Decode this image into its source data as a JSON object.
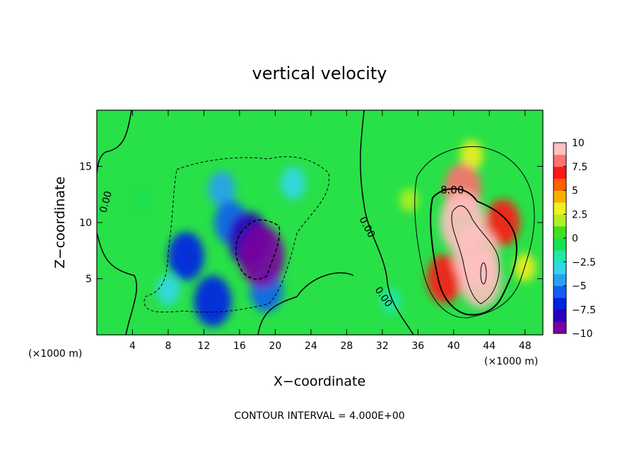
{
  "chart_data": {
    "type": "heatmap",
    "title": "vertical velocity",
    "xlabel": "X−coordinate",
    "ylabel": "Z−coordinate",
    "x_unit": "(×1000 m)",
    "y_unit": "(×1000 m)",
    "xlim": [
      0,
      50
    ],
    "ylim": [
      0,
      20
    ],
    "x_ticks": [
      4,
      8,
      12,
      16,
      20,
      24,
      28,
      32,
      36,
      40,
      44,
      48
    ],
    "y_ticks": [
      5,
      10,
      15
    ],
    "colorbar": {
      "range": [
        -10,
        10
      ],
      "tick_labels": [
        "10",
        "7.5",
        "5",
        "2.5",
        "0",
        "−2.5",
        "−5",
        "−7.5",
        "−10"
      ],
      "colors": [
        "#7a00a0",
        "#2a00b8",
        "#0020e8",
        "#1060f0",
        "#2aa0f5",
        "#30d8e8",
        "#20e8a8",
        "#18e050",
        "#40e020",
        "#b0f020",
        "#f0f020",
        "#f8b000",
        "#ff6000",
        "#ff1818",
        "#ff7070",
        "#ffc0c0"
      ]
    },
    "contour_labels": [
      "0.00",
      "0.00",
      "0.00",
      "8.00"
    ],
    "cells": [
      {
        "x": 18.5,
        "z": 7.0,
        "w": -10.0
      },
      {
        "x": 17.0,
        "z": 8.5,
        "w": -8.5
      },
      {
        "x": 15.0,
        "z": 10.0,
        "w": -6.0
      },
      {
        "x": 10.0,
        "z": 7.0,
        "w": -7.0
      },
      {
        "x": 13.0,
        "z": 3.0,
        "w": -7.5
      },
      {
        "x": 19.0,
        "z": 4.0,
        "w": -6.0
      },
      {
        "x": 14.0,
        "z": 13.0,
        "w": -4.0
      },
      {
        "x": 22.0,
        "z": 13.5,
        "w": -3.5
      },
      {
        "x": 8.0,
        "z": 4.0,
        "w": -3.0
      },
      {
        "x": 33.0,
        "z": 3.0,
        "w": -2.0
      },
      {
        "x": 5.0,
        "z": 12.0,
        "w": -1.0
      },
      {
        "x": 41.0,
        "z": 10.0,
        "w": 10.0
      },
      {
        "x": 42.5,
        "z": 7.0,
        "w": 10.0
      },
      {
        "x": 43.0,
        "z": 5.0,
        "w": 9.0
      },
      {
        "x": 41.0,
        "z": 13.0,
        "w": 7.5
      },
      {
        "x": 45.5,
        "z": 10.0,
        "w": 6.5
      },
      {
        "x": 39.0,
        "z": 5.0,
        "w": 7.0
      },
      {
        "x": 42.0,
        "z": 16.0,
        "w": 3.0
      },
      {
        "x": 48.0,
        "z": 6.0,
        "w": 2.5
      },
      {
        "x": 35.0,
        "z": 12.0,
        "w": 1.5
      }
    ]
  },
  "footer": {
    "contour_interval_label": "CONTOUR INTERVAL = 4.000E+00"
  },
  "colors": {
    "background": "#ffffff",
    "axis": "#000000"
  }
}
